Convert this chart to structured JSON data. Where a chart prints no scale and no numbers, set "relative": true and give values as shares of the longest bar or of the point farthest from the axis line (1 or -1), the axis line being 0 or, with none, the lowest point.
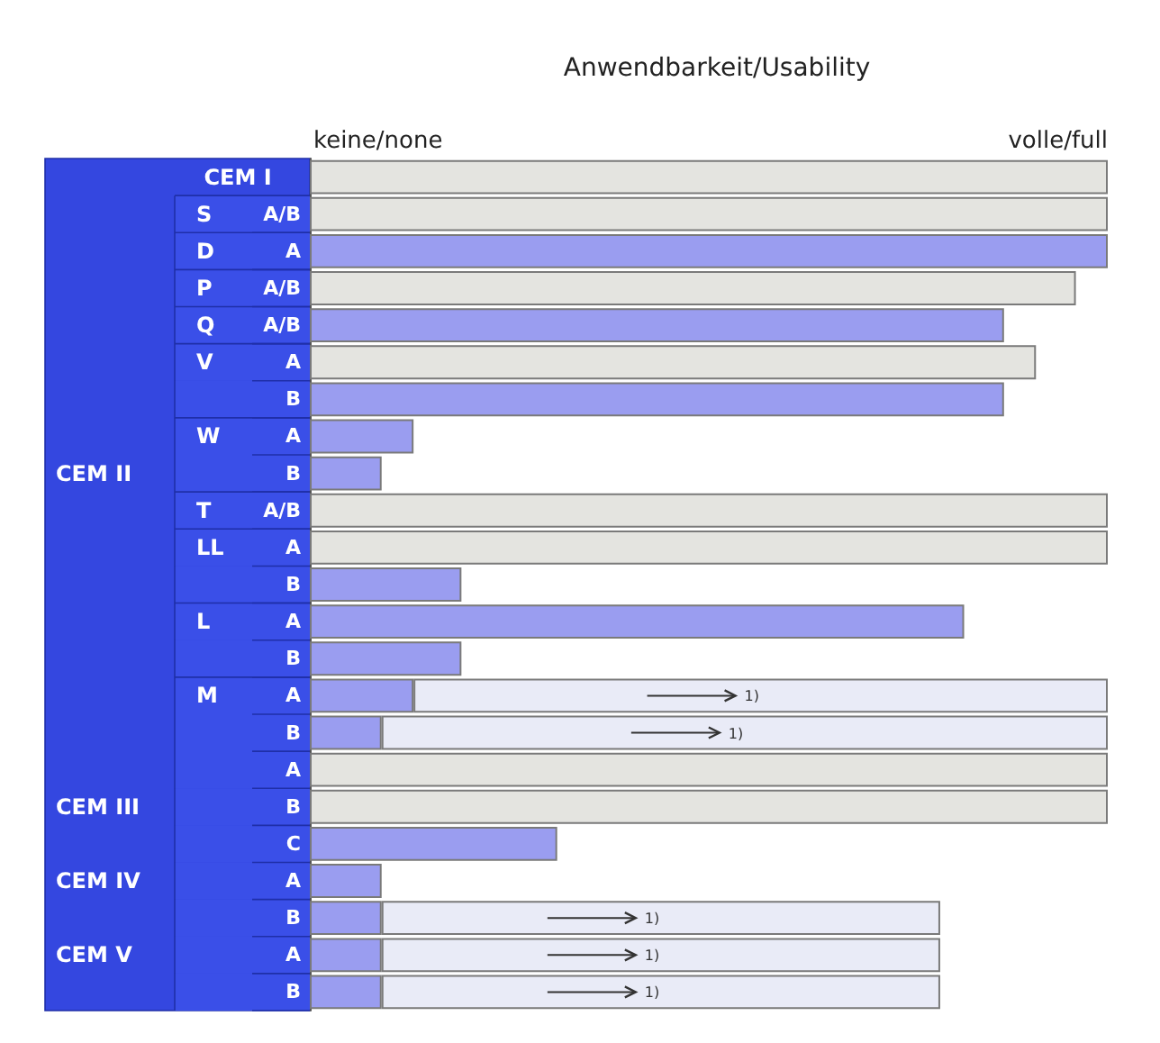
{
  "chart_data": {
    "type": "bar",
    "orientation": "horizontal",
    "stacked": true,
    "relative": true,
    "title": "Anwendbarkeit/Usability",
    "categories": [
      null,
      "A/B",
      "A",
      "A/B",
      "A/B",
      "A",
      "B",
      "A",
      "B",
      "A/B",
      "A",
      "B",
      "A",
      "B",
      "A",
      "B",
      "A",
      "B",
      "C",
      "A",
      "B",
      "A",
      "B"
    ],
    "y_categories": [
      null,
      "S",
      "D",
      "P",
      "Q",
      "V",
      null,
      "W",
      null,
      "T",
      "LL",
      null,
      "L",
      null,
      "M",
      null,
      null,
      null,
      null,
      null,
      null,
      null,
      null
    ],
    "y2_categories": [
      "CEM I",
      null,
      null,
      null,
      null,
      null,
      null,
      null,
      "CEM II",
      null,
      null,
      null,
      null,
      null,
      null,
      null,
      null,
      "CEM III",
      null,
      "CEM IV",
      null,
      "CEM V",
      null
    ],
    "series": [
      {
        "color": "#e4e4e0",
        "values": [
          1,
          1,
          null,
          0.96,
          null,
          0.91,
          null,
          null,
          null,
          1,
          1,
          null,
          null,
          null,
          null,
          null,
          1,
          1,
          null,
          null,
          null,
          null,
          null
        ]
      },
      {
        "color": "#9a9df0",
        "values": [
          null,
          null,
          1,
          null,
          0.87,
          null,
          0.87,
          0.13,
          0.09,
          null,
          null,
          0.19,
          0.82,
          0.19,
          0.13,
          0.09,
          null,
          null,
          0.31,
          0.09,
          0.09,
          0.09,
          0.09
        ]
      },
      {
        "color": "#e9ebf7",
        "values": [
          null,
          null,
          null,
          null,
          null,
          null,
          null,
          null,
          null,
          null,
          null,
          null,
          null,
          null,
          0.87,
          0.91,
          null,
          null,
          null,
          null,
          0.7,
          0.7,
          0.7
        ]
      }
    ],
    "annotations": [
      "keine/none",
      "volle/full",
      "1)",
      "1)",
      "1)",
      "1)",
      "1)"
    ]
  }
}
